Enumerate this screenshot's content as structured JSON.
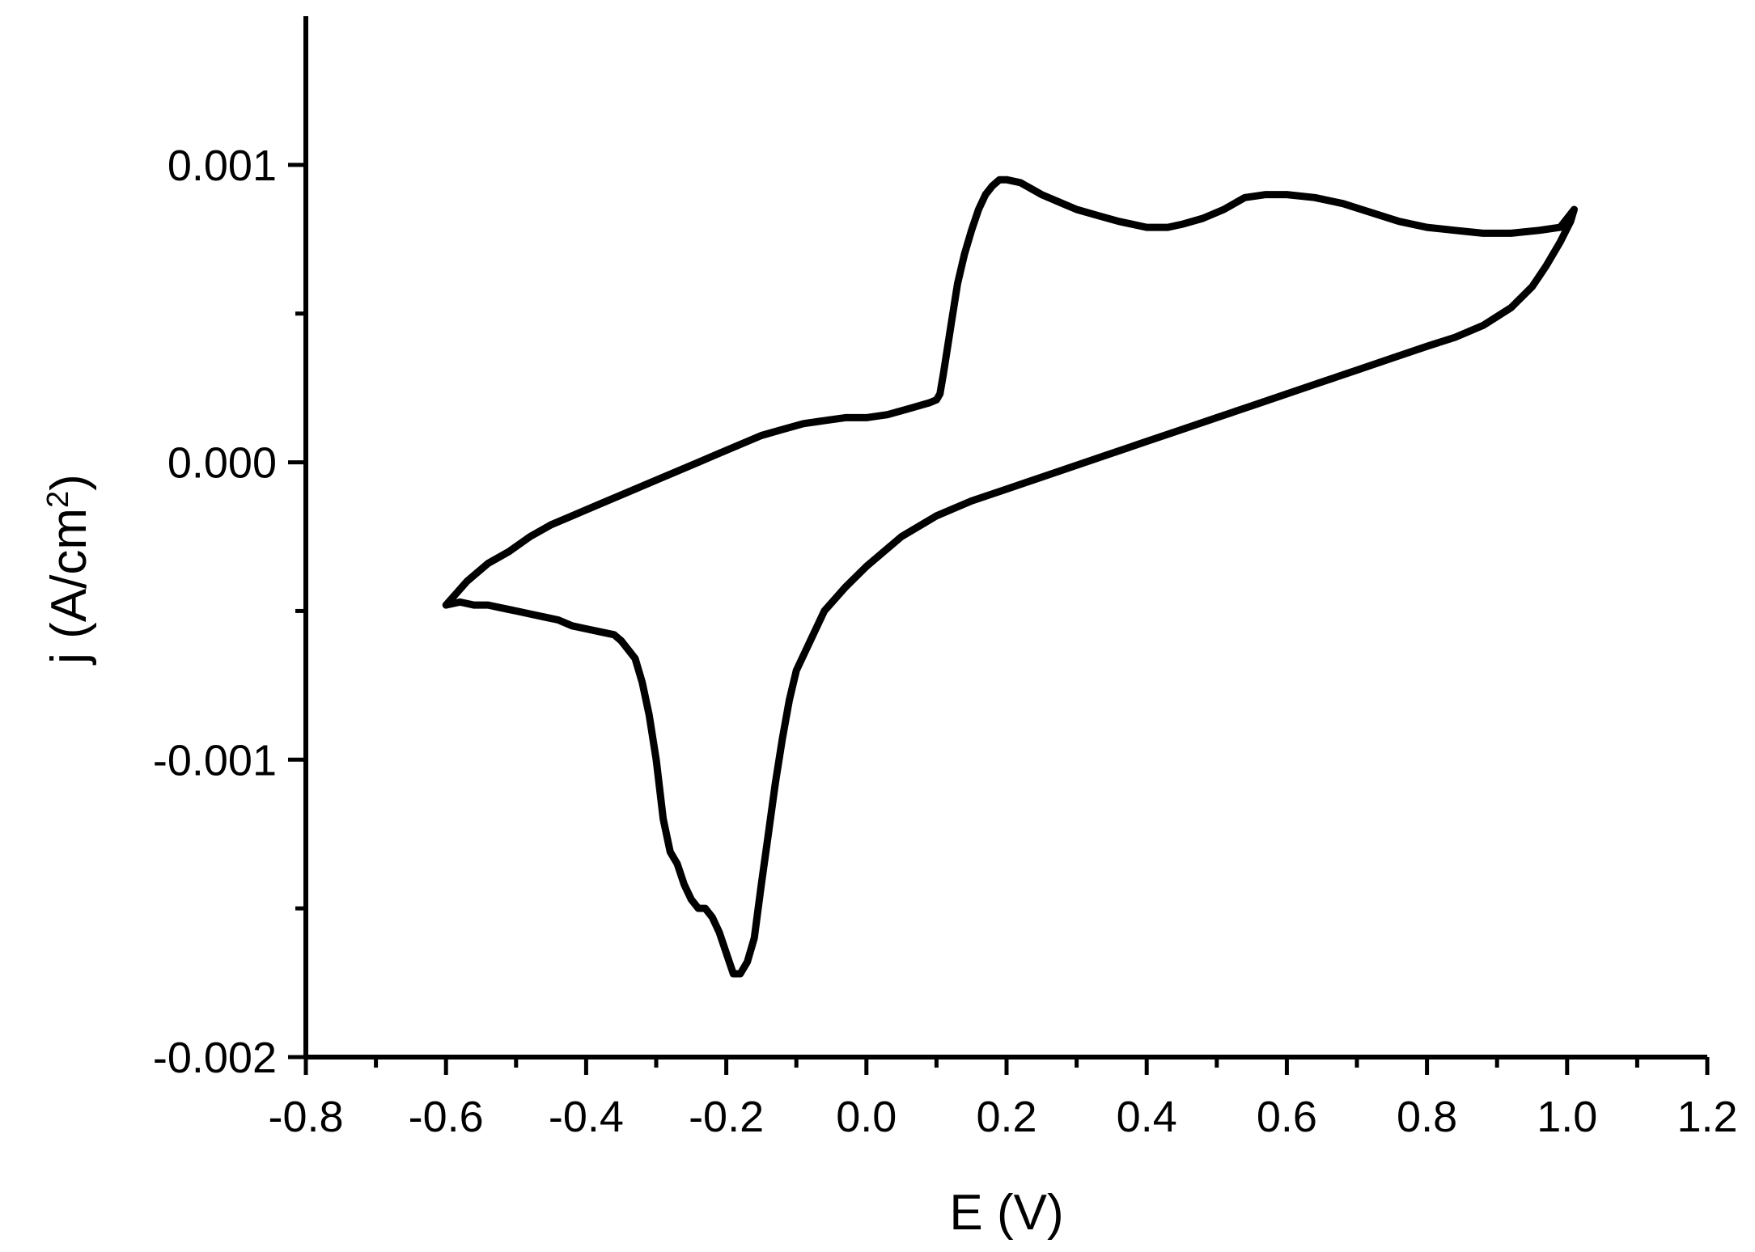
{
  "chart_data": {
    "type": "line",
    "title": "",
    "xlabel": "E (V)",
    "ylabel_main": "j (A/cm",
    "ylabel_sup": "2",
    "ylabel_close": ")",
    "xlim": [
      -0.8,
      1.2
    ],
    "ylim": [
      -0.002,
      0.0015
    ],
    "x_ticks": [
      -0.8,
      -0.6,
      -0.4,
      -0.2,
      0.0,
      0.2,
      0.4,
      0.6,
      0.8,
      1.0,
      1.2
    ],
    "x_tick_labels": [
      "-0.8",
      "-0.6",
      "-0.4",
      "-0.2",
      "0.0",
      "0.2",
      "0.4",
      "0.6",
      "0.8",
      "1.0",
      "1.2"
    ],
    "x_minor_ticks": [
      -0.7,
      -0.5,
      -0.3,
      -0.1,
      0.1,
      0.3,
      0.5,
      0.7,
      0.9,
      1.1
    ],
    "y_ticks": [
      -0.002,
      -0.001,
      0.0,
      0.001
    ],
    "y_tick_labels": [
      "-0.002",
      "-0.001",
      "0.000",
      "0.001"
    ],
    "y_minor_ticks": [
      -0.0015,
      -0.0005,
      0.0005
    ],
    "grid": false,
    "legend": "none",
    "series": [
      {
        "color": "#000000",
        "x": [
          -0.6,
          -0.57,
          -0.54,
          -0.51,
          -0.48,
          -0.45,
          -0.42,
          -0.39,
          -0.36,
          -0.33,
          -0.3,
          -0.27,
          -0.24,
          -0.21,
          -0.18,
          -0.15,
          -0.12,
          -0.09,
          -0.06,
          -0.03,
          0.0,
          0.03,
          0.06,
          0.09,
          0.1,
          0.105,
          0.11,
          0.12,
          0.13,
          0.14,
          0.15,
          0.16,
          0.17,
          0.18,
          0.19,
          0.2,
          0.22,
          0.25,
          0.28,
          0.3,
          0.33,
          0.36,
          0.4,
          0.43,
          0.45,
          0.48,
          0.51,
          0.54,
          0.57,
          0.6,
          0.64,
          0.68,
          0.72,
          0.76,
          0.8,
          0.84,
          0.88,
          0.92,
          0.96,
          0.99,
          1.01,
          1.005,
          0.99,
          0.97,
          0.95,
          0.92,
          0.88,
          0.84,
          0.8,
          0.75,
          0.7,
          0.65,
          0.6,
          0.55,
          0.5,
          0.45,
          0.4,
          0.35,
          0.3,
          0.25,
          0.2,
          0.15,
          0.1,
          0.05,
          0.0,
          -0.03,
          -0.06,
          -0.08,
          -0.1,
          -0.11,
          -0.12,
          -0.13,
          -0.14,
          -0.15,
          -0.16,
          -0.17,
          -0.18,
          -0.19,
          -0.2,
          -0.21,
          -0.22,
          -0.23,
          -0.24,
          -0.25,
          -0.26,
          -0.27,
          -0.28,
          -0.29,
          -0.3,
          -0.31,
          -0.32,
          -0.33,
          -0.34,
          -0.35,
          -0.36,
          -0.38,
          -0.4,
          -0.42,
          -0.44,
          -0.46,
          -0.48,
          -0.5,
          -0.52,
          -0.54,
          -0.56,
          -0.58,
          -0.6
        ],
        "y": [
          -0.00048,
          -0.0004,
          -0.00034,
          -0.0003,
          -0.00025,
          -0.00021,
          -0.00018,
          -0.00015,
          -0.00012,
          -9e-05,
          -6e-05,
          -3e-05,
          0.0,
          3e-05,
          6e-05,
          9e-05,
          0.00011,
          0.00013,
          0.00014,
          0.00015,
          0.00015,
          0.00016,
          0.00018,
          0.0002,
          0.00021,
          0.00023,
          0.0003,
          0.00045,
          0.0006,
          0.0007,
          0.00078,
          0.00085,
          0.0009,
          0.00093,
          0.00095,
          0.00095,
          0.00094,
          0.0009,
          0.00087,
          0.00085,
          0.00083,
          0.00081,
          0.00079,
          0.00079,
          0.0008,
          0.00082,
          0.00085,
          0.00089,
          0.0009,
          0.0009,
          0.00089,
          0.00087,
          0.00084,
          0.00081,
          0.00079,
          0.00078,
          0.00077,
          0.00077,
          0.00078,
          0.00079,
          0.00085,
          0.00081,
          0.00074,
          0.00066,
          0.00059,
          0.00052,
          0.00046,
          0.00042,
          0.00039,
          0.00035,
          0.00031,
          0.00027,
          0.00023,
          0.00019,
          0.00015,
          0.00011,
          7e-05,
          3e-05,
          -1e-05,
          -5e-05,
          -9e-05,
          -0.00013,
          -0.00018,
          -0.00025,
          -0.00035,
          -0.00042,
          -0.0005,
          -0.0006,
          -0.0007,
          -0.0008,
          -0.00093,
          -0.00108,
          -0.00125,
          -0.00142,
          -0.0016,
          -0.00168,
          -0.00172,
          -0.00172,
          -0.00165,
          -0.00158,
          -0.00153,
          -0.0015,
          -0.0015,
          -0.00147,
          -0.00142,
          -0.00135,
          -0.00131,
          -0.0012,
          -0.001,
          -0.00085,
          -0.00074,
          -0.00066,
          -0.00063,
          -0.0006,
          -0.00058,
          -0.00057,
          -0.00056,
          -0.00055,
          -0.00053,
          -0.00052,
          -0.00051,
          -0.0005,
          -0.00049,
          -0.00048,
          -0.00048,
          -0.00047,
          -0.00048
        ]
      }
    ]
  }
}
